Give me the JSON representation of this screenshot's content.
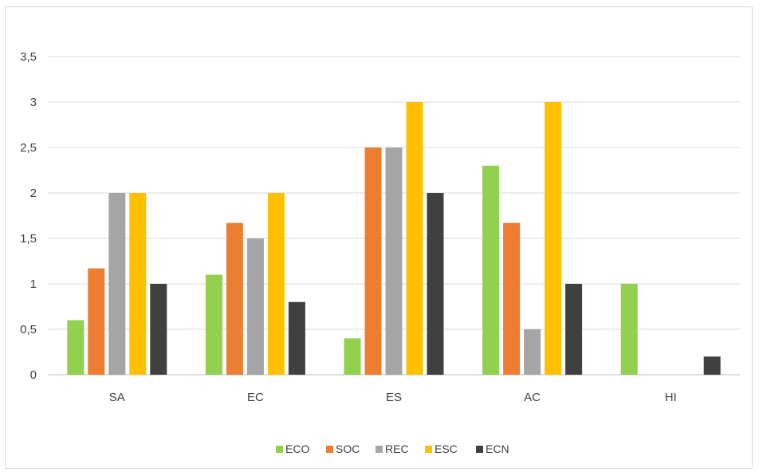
{
  "chart_data": {
    "type": "bar",
    "categories": [
      "SA",
      "EC",
      "ES",
      "AC",
      "HI"
    ],
    "series": [
      {
        "name": "ECO",
        "color": "#92d050",
        "values": [
          0.6,
          1.1,
          0.4,
          2.3,
          1.0
        ]
      },
      {
        "name": "SOC",
        "color": "#ed7d31",
        "values": [
          1.17,
          1.67,
          2.5,
          1.67,
          0
        ]
      },
      {
        "name": "REC",
        "color": "#a5a5a5",
        "values": [
          2.0,
          1.5,
          2.5,
          0.5,
          0
        ]
      },
      {
        "name": "ESC",
        "color": "#ffc000",
        "values": [
          2.0,
          2.0,
          3.0,
          3.0,
          0
        ]
      },
      {
        "name": "ECN",
        "color": "#404040",
        "values": [
          1.0,
          0.8,
          2.0,
          1.0,
          0.2
        ]
      }
    ],
    "ylim": [
      0,
      4
    ],
    "yticks": [
      "0",
      "0,5",
      "1",
      "1,5",
      "2",
      "2,5",
      "3",
      "3,5"
    ],
    "ytick_values": [
      0,
      0.5,
      1,
      1.5,
      2,
      2.5,
      3,
      3.5
    ],
    "grid": true,
    "legend_position": "bottom",
    "title": "",
    "xlabel": "",
    "ylabel": ""
  }
}
